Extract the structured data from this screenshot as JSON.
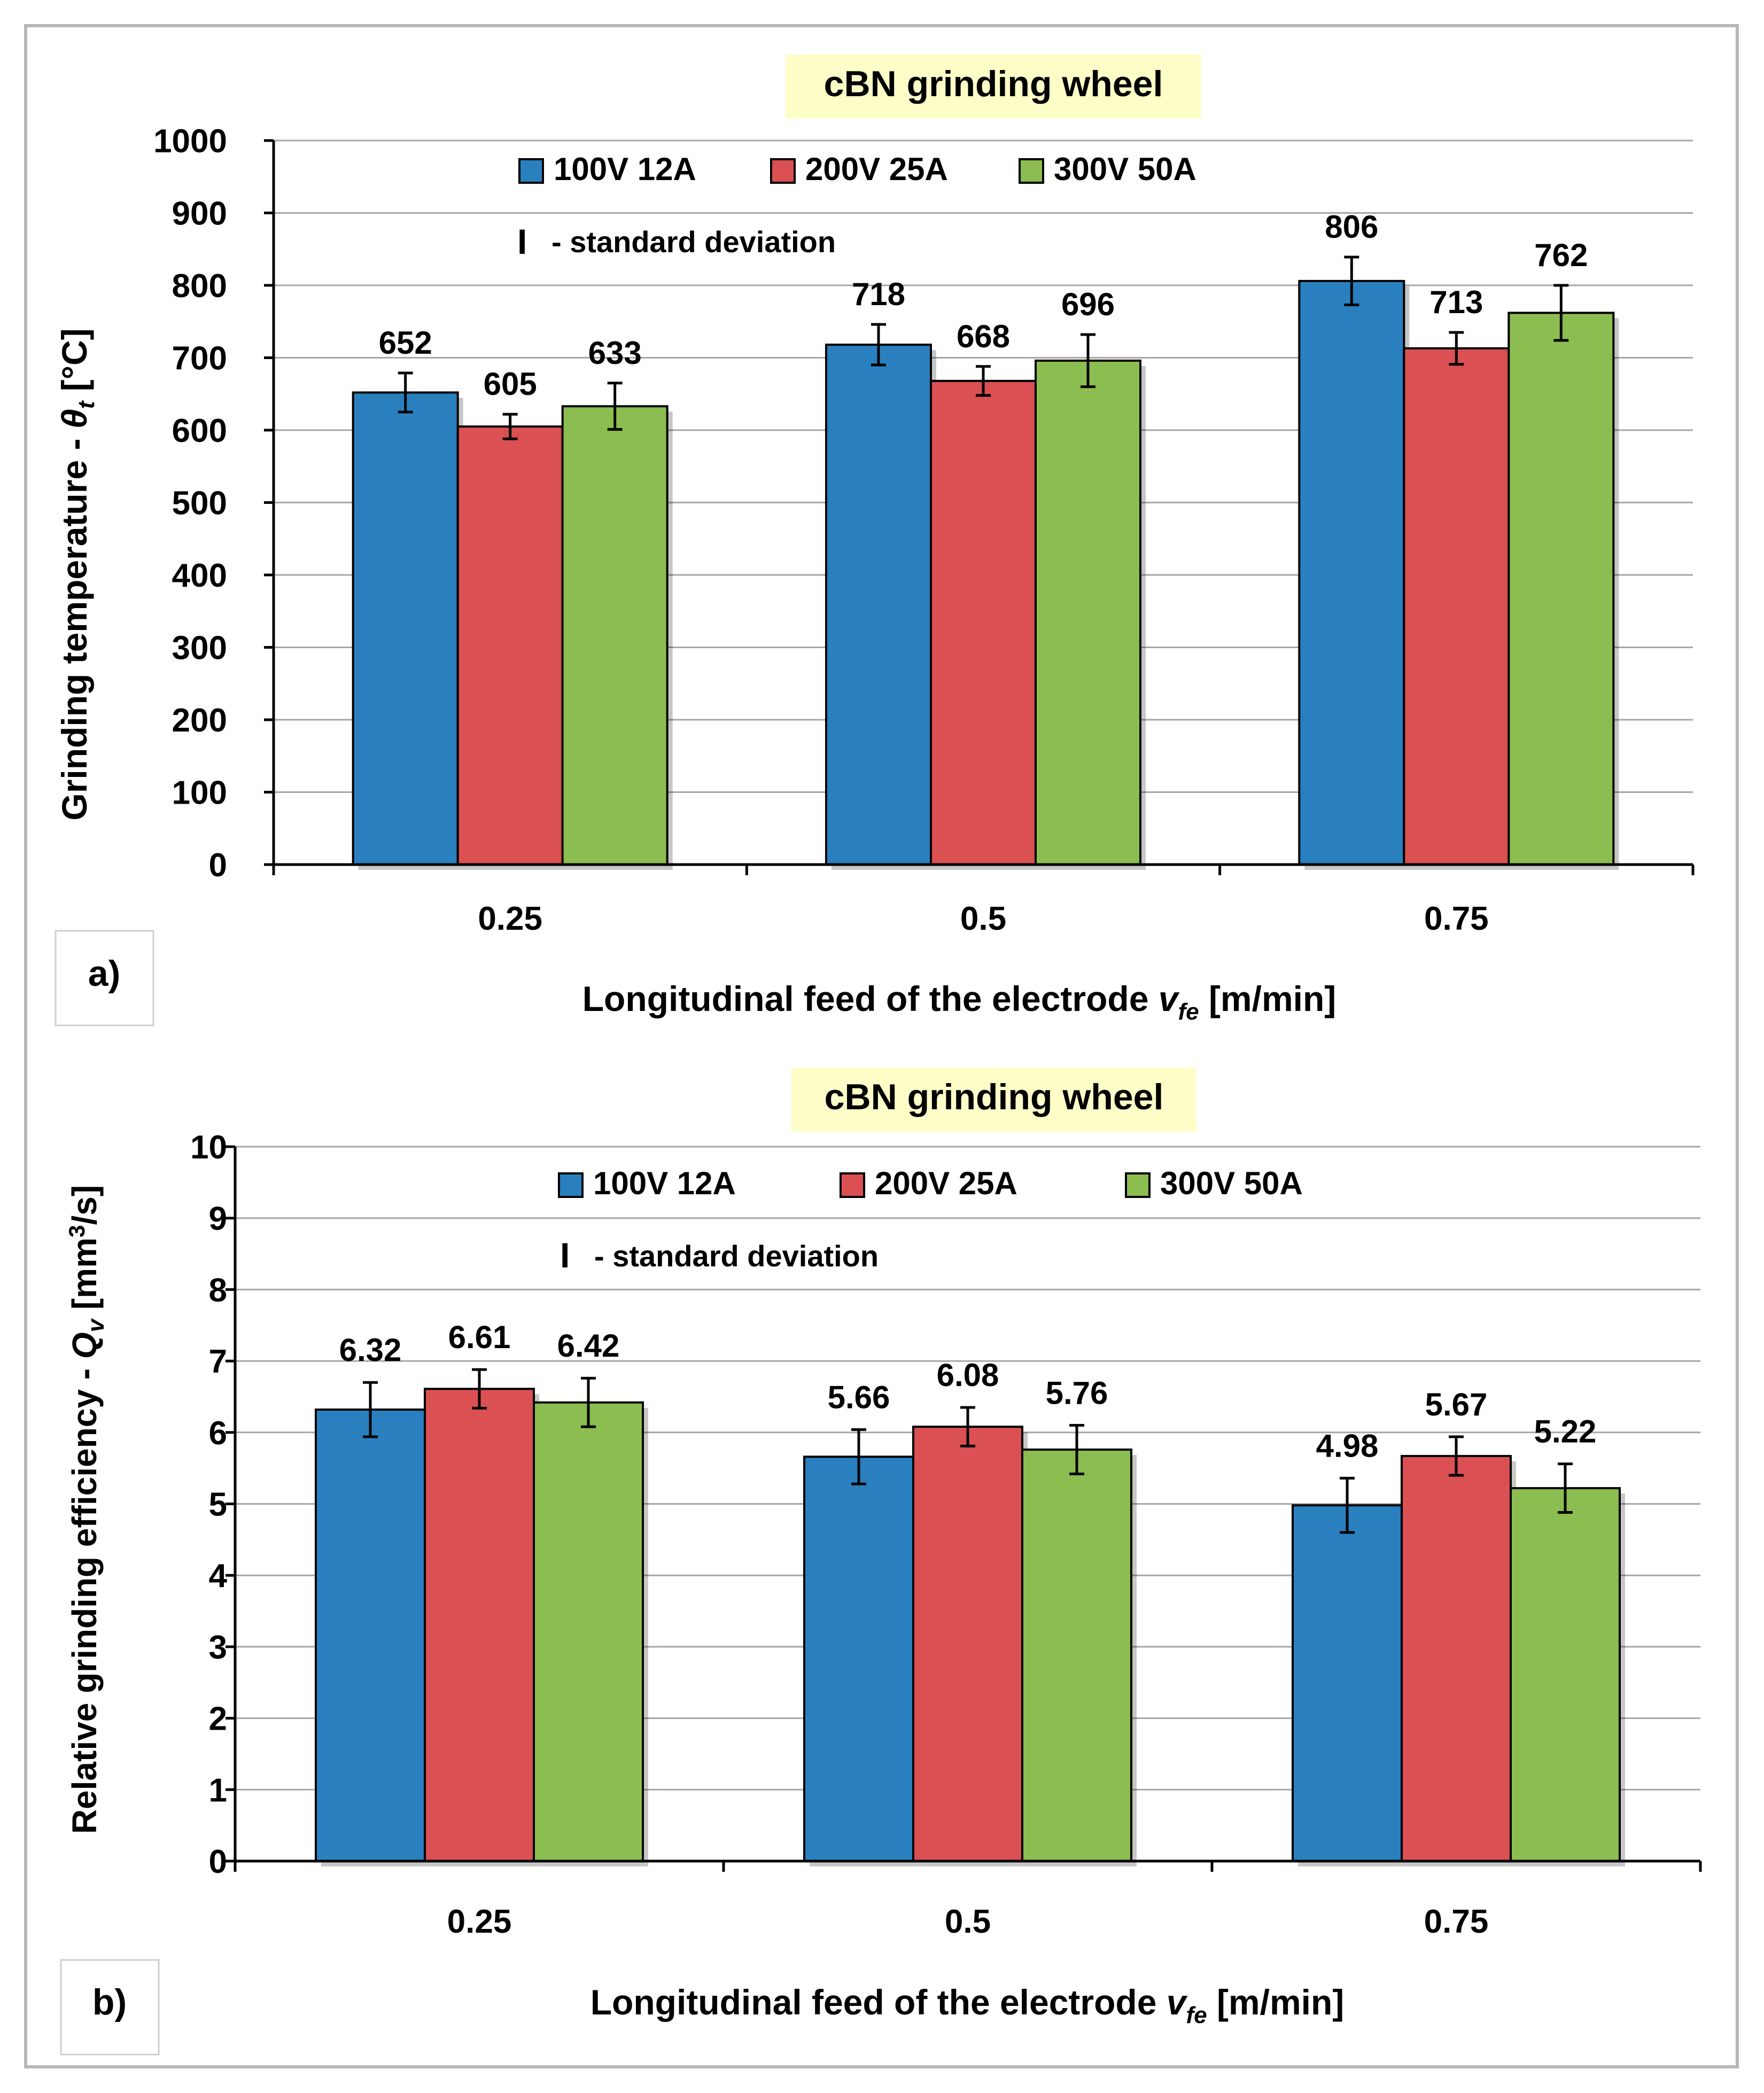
{
  "figure": {
    "std_dev_symbol": "I",
    "std_dev_label": "- standard deviation"
  },
  "colors": {
    "series": [
      "#2A80BF",
      "#DB5052",
      "#8CBD50"
    ],
    "title_background": "#FDFDC8",
    "frame": "#B7B7B7",
    "grid": "#A6A6A6"
  },
  "chart_data": [
    {
      "type": "bar",
      "panel": "a)",
      "title": "cBN grinding wheel",
      "categories": [
        "0.25",
        "0.5",
        "0.75"
      ],
      "series": [
        {
          "name": "100V 12A",
          "values": [
            652,
            718,
            806
          ],
          "errors": [
            27,
            28,
            33
          ]
        },
        {
          "name": "200V 25A",
          "values": [
            605,
            668,
            713
          ],
          "errors": [
            17,
            20,
            22
          ]
        },
        {
          "name": "300V 50A",
          "values": [
            633,
            696,
            762
          ],
          "errors": [
            32,
            36,
            38
          ]
        }
      ],
      "value_labels": [
        [
          "652",
          "718",
          "806"
        ],
        [
          "605",
          "668",
          "713"
        ],
        [
          "633",
          "696",
          "762"
        ]
      ],
      "ylim": [
        0,
        1000
      ],
      "yticks": [
        0,
        100,
        200,
        300,
        400,
        500,
        600,
        700,
        800,
        900,
        1000
      ],
      "ytick_labels": [
        "0",
        "100",
        "200",
        "300",
        "400",
        "500",
        "600",
        "700",
        "800",
        "900",
        "1000"
      ],
      "ylabel": "Grinding temperature - θt [°C]",
      "xlabel": "Longitudinal feed of the electrode vfe [m/min]",
      "grid": true,
      "legend_position": "top"
    },
    {
      "type": "bar",
      "panel": "b)",
      "title": "cBN grinding wheel",
      "categories": [
        "0.25",
        "0.5",
        "0.75"
      ],
      "series": [
        {
          "name": "100V 12A",
          "values": [
            6.32,
            5.66,
            4.98
          ],
          "errors": [
            0.38,
            0.38,
            0.38
          ]
        },
        {
          "name": "200V 25A",
          "values": [
            6.61,
            6.08,
            5.67
          ],
          "errors": [
            0.27,
            0.27,
            0.27
          ]
        },
        {
          "name": "300V 50A",
          "values": [
            6.42,
            5.76,
            5.22
          ],
          "errors": [
            0.34,
            0.34,
            0.34
          ]
        }
      ],
      "value_labels": [
        [
          "6.32",
          "5.66",
          "4.98"
        ],
        [
          "6.61",
          "6.08",
          "5.67"
        ],
        [
          "6.42",
          "5.76",
          "5.22"
        ]
      ],
      "ylim": [
        0,
        10
      ],
      "yticks": [
        0,
        1,
        2,
        3,
        4,
        5,
        6,
        7,
        8,
        9,
        10
      ],
      "ytick_labels": [
        "0",
        "1",
        "2",
        "3",
        "4",
        "5",
        "6",
        "7",
        "8",
        "9",
        "10"
      ],
      "ylabel": "Relative grinding efficiency - Qv [mm3/s]",
      "xlabel": "Longitudinal feed of the electrode vfe [m/min]",
      "grid": true,
      "legend_position": "top"
    }
  ]
}
